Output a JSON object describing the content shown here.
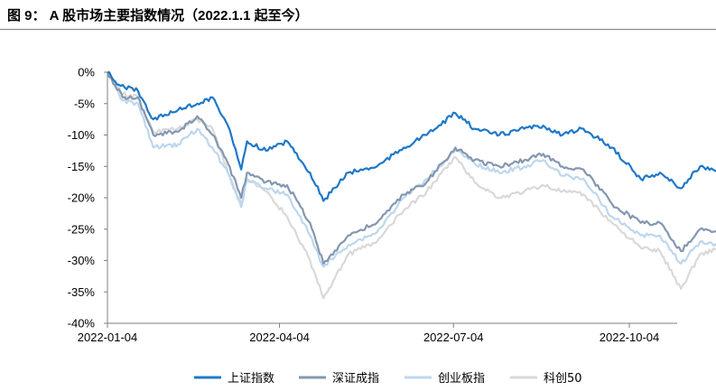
{
  "figure": {
    "title": "图 9：  A 股市场主要指数情况（2022.1.1 起至今）"
  },
  "chart_data": {
    "type": "line",
    "title": "",
    "xlabel": "",
    "ylabel": "",
    "x_ticks": [
      "2022-01-04",
      "2022-04-04",
      "2022-07-04",
      "2022-10-04"
    ],
    "y_ticks": [
      "0%",
      "-5%",
      "-10%",
      "-15%",
      "-20%",
      "-25%",
      "-30%",
      "-35%",
      "-40%"
    ],
    "ylim": [
      -40,
      0
    ],
    "grid": false,
    "legend_position": "bottom",
    "series": [
      {
        "name": "上证指数",
        "color": "#1f78c8",
        "points": [
          [
            "2022-01-04",
            0
          ],
          [
            "2022-01-10",
            -2
          ],
          [
            "2022-01-20",
            -3
          ],
          [
            "2022-01-28",
            -7.5
          ],
          [
            "2022-02-10",
            -6
          ],
          [
            "2022-02-20",
            -5
          ],
          [
            "2022-02-28",
            -4
          ],
          [
            "2022-03-08",
            -8.5
          ],
          [
            "2022-03-15",
            -15.5
          ],
          [
            "2022-03-18",
            -11
          ],
          [
            "2022-03-28",
            -12.5
          ],
          [
            "2022-04-08",
            -11
          ],
          [
            "2022-04-20",
            -16
          ],
          [
            "2022-04-27",
            -20.5
          ],
          [
            "2022-05-10",
            -16
          ],
          [
            "2022-05-25",
            -15
          ],
          [
            "2022-06-08",
            -12
          ],
          [
            "2022-06-20",
            -10
          ],
          [
            "2022-07-05",
            -6.5
          ],
          [
            "2022-07-15",
            -9
          ],
          [
            "2022-07-28",
            -10
          ],
          [
            "2022-08-10",
            -9
          ],
          [
            "2022-08-20",
            -8.5
          ],
          [
            "2022-08-30",
            -10
          ],
          [
            "2022-09-10",
            -9
          ],
          [
            "2022-09-25",
            -12
          ],
          [
            "2022-10-10",
            -17
          ],
          [
            "2022-10-20",
            -16
          ],
          [
            "2022-10-31",
            -18.5
          ],
          [
            "2022-11-10",
            -15
          ],
          [
            "2022-11-20",
            -16
          ],
          [
            "2022-11-30",
            -16.5
          ],
          [
            "2022-12-05",
            -19.5
          ]
        ]
      },
      {
        "name": "深证成指",
        "color": "#8497b0",
        "points": [
          [
            "2022-01-04",
            0
          ],
          [
            "2022-01-12",
            -4
          ],
          [
            "2022-01-20",
            -4
          ],
          [
            "2022-01-28",
            -10
          ],
          [
            "2022-02-10",
            -9.5
          ],
          [
            "2022-02-20",
            -7
          ],
          [
            "2022-02-28",
            -10
          ],
          [
            "2022-03-08",
            -14.5
          ],
          [
            "2022-03-15",
            -20
          ],
          [
            "2022-03-18",
            -16
          ],
          [
            "2022-03-28",
            -17.5
          ],
          [
            "2022-04-08",
            -18
          ],
          [
            "2022-04-20",
            -24
          ],
          [
            "2022-04-27",
            -30.5
          ],
          [
            "2022-05-10",
            -26
          ],
          [
            "2022-05-25",
            -24
          ],
          [
            "2022-06-08",
            -19.5
          ],
          [
            "2022-06-20",
            -17.5
          ],
          [
            "2022-07-05",
            -12
          ],
          [
            "2022-07-15",
            -14
          ],
          [
            "2022-07-28",
            -15
          ],
          [
            "2022-08-10",
            -14
          ],
          [
            "2022-08-20",
            -13
          ],
          [
            "2022-08-30",
            -15
          ],
          [
            "2022-09-10",
            -15.5
          ],
          [
            "2022-09-25",
            -21
          ],
          [
            "2022-10-10",
            -24
          ],
          [
            "2022-10-20",
            -24
          ],
          [
            "2022-10-31",
            -28.5
          ],
          [
            "2022-11-10",
            -25
          ],
          [
            "2022-11-20",
            -25.5
          ],
          [
            "2022-11-30",
            -26
          ],
          [
            "2022-12-05",
            -28
          ]
        ]
      },
      {
        "name": "创业板指",
        "color": "#bdd7ee",
        "points": [
          [
            "2022-01-04",
            0
          ],
          [
            "2022-01-12",
            -4.5
          ],
          [
            "2022-01-20",
            -5
          ],
          [
            "2022-01-28",
            -12
          ],
          [
            "2022-02-10",
            -11.5
          ],
          [
            "2022-02-20",
            -9
          ],
          [
            "2022-02-28",
            -12
          ],
          [
            "2022-03-08",
            -16
          ],
          [
            "2022-03-15",
            -21.5
          ],
          [
            "2022-03-18",
            -17
          ],
          [
            "2022-03-28",
            -18.5
          ],
          [
            "2022-04-08",
            -19.5
          ],
          [
            "2022-04-20",
            -26
          ],
          [
            "2022-04-27",
            -31
          ],
          [
            "2022-05-10",
            -27.5
          ],
          [
            "2022-05-25",
            -25.5
          ],
          [
            "2022-06-08",
            -20
          ],
          [
            "2022-06-20",
            -17
          ],
          [
            "2022-07-05",
            -12.5
          ],
          [
            "2022-07-15",
            -14.5
          ],
          [
            "2022-07-28",
            -16
          ],
          [
            "2022-08-10",
            -15
          ],
          [
            "2022-08-20",
            -14
          ],
          [
            "2022-08-30",
            -16.5
          ],
          [
            "2022-09-10",
            -17
          ],
          [
            "2022-09-25",
            -23
          ],
          [
            "2022-10-10",
            -26
          ],
          [
            "2022-10-20",
            -26
          ],
          [
            "2022-10-31",
            -30.5
          ],
          [
            "2022-11-10",
            -27
          ],
          [
            "2022-11-20",
            -27.5
          ],
          [
            "2022-11-30",
            -28
          ],
          [
            "2022-12-05",
            -29.5
          ]
        ]
      },
      {
        "name": "科创50",
        "color": "#d9d9d9",
        "points": [
          [
            "2022-01-04",
            0
          ],
          [
            "2022-01-12",
            -3.5
          ],
          [
            "2022-01-20",
            -4
          ],
          [
            "2022-01-28",
            -9.5
          ],
          [
            "2022-02-10",
            -9
          ],
          [
            "2022-02-20",
            -7.5
          ],
          [
            "2022-02-28",
            -9
          ],
          [
            "2022-03-08",
            -16
          ],
          [
            "2022-03-15",
            -21
          ],
          [
            "2022-03-18",
            -17
          ],
          [
            "2022-03-28",
            -19
          ],
          [
            "2022-04-08",
            -23
          ],
          [
            "2022-04-20",
            -30
          ],
          [
            "2022-04-27",
            -36
          ],
          [
            "2022-05-10",
            -29
          ],
          [
            "2022-05-25",
            -27
          ],
          [
            "2022-06-08",
            -22
          ],
          [
            "2022-06-20",
            -19
          ],
          [
            "2022-07-05",
            -13.5
          ],
          [
            "2022-07-15",
            -17.5
          ],
          [
            "2022-07-28",
            -20
          ],
          [
            "2022-08-10",
            -19
          ],
          [
            "2022-08-20",
            -18
          ],
          [
            "2022-08-30",
            -19
          ],
          [
            "2022-09-10",
            -19.5
          ],
          [
            "2022-09-25",
            -24
          ],
          [
            "2022-10-10",
            -28
          ],
          [
            "2022-10-20",
            -28.5
          ],
          [
            "2022-10-31",
            -34.5
          ],
          [
            "2022-11-10",
            -29
          ],
          [
            "2022-11-20",
            -28
          ],
          [
            "2022-11-30",
            -28.5
          ],
          [
            "2022-12-05",
            -27.5
          ]
        ]
      }
    ]
  }
}
